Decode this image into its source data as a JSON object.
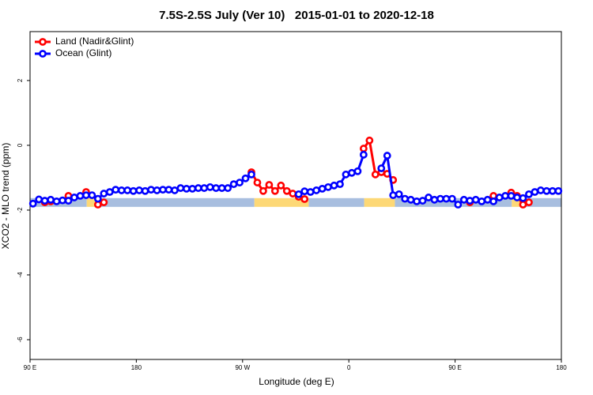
{
  "chart_data": {
    "type": "line",
    "title": "7.5S-2.5S July (Ver 10)   2015-01-01 to 2020-12-18",
    "x_label": "Longitude (deg E)",
    "y_label": "XCO2 - MLO trend (ppm)",
    "xlim": [
      90,
      540
    ],
    "ylim": [
      -6.61,
      3.51
    ],
    "xticks": [
      {
        "value": 90,
        "label": "90 E"
      },
      180,
      {
        "value": 270,
        "label": "90 W"
      },
      {
        "value": 360,
        "label": "0"
      },
      {
        "value": 450,
        "label": "90 E"
      },
      {
        "value": 540,
        "label": "180"
      }
    ],
    "yticks": [
      -6,
      -4,
      -2,
      0,
      2
    ],
    "legend": "upper left",
    "bands": [
      {
        "xlim": [
          90,
          138
        ],
        "ylim": [
          -1.63,
          -1.9
        ],
        "color": "#a8bedf"
      },
      {
        "xlim": [
          138,
          148
        ],
        "ylim": [
          -1.63,
          -1.9
        ],
        "color": "#fdd876"
      },
      {
        "xlim": [
          148,
          280
        ],
        "ylim": [
          -1.63,
          -1.9
        ],
        "color": "#a8bedf"
      },
      {
        "xlim": [
          280,
          326
        ],
        "ylim": [
          -1.63,
          -1.9
        ],
        "color": "#fdd876"
      },
      {
        "xlim": [
          326,
          373
        ],
        "ylim": [
          -1.63,
          -1.9
        ],
        "color": "#a8bedf"
      },
      {
        "xlim": [
          373,
          399
        ],
        "ylim": [
          -1.63,
          -1.9
        ],
        "color": "#fdd876"
      },
      {
        "xlim": [
          399,
          498
        ],
        "ylim": [
          -1.63,
          -1.9
        ],
        "color": "#a8bedf"
      },
      {
        "xlim": [
          498,
          506
        ],
        "ylim": [
          -1.63,
          -1.9
        ],
        "color": "#fdd876"
      },
      {
        "xlim": [
          506,
          540
        ],
        "ylim": [
          -1.63,
          -1.9
        ],
        "color": "#a8bedf"
      }
    ],
    "x": [
      92.5,
      97.5,
      102.5,
      107.5,
      112.5,
      117.5,
      122.5,
      127.5,
      132.5,
      137.5,
      142.5,
      147.5,
      152.5,
      157.5,
      162.5,
      167.5,
      172.5,
      177.5,
      182.5,
      187.5,
      192.5,
      197.5,
      202.5,
      207.5,
      212.5,
      217.5,
      222.5,
      227.5,
      232.5,
      237.5,
      242.5,
      247.5,
      252.5,
      257.5,
      262.5,
      267.5,
      272.5,
      277.5,
      282.5,
      287.5,
      292.5,
      297.5,
      302.5,
      307.5,
      312.5,
      317.5,
      322.5,
      327.5,
      332.5,
      337.5,
      342.5,
      347.5,
      352.5,
      357.5,
      362.5,
      367.5,
      372.5,
      377.5,
      382.5,
      387.5,
      392.5,
      397.5,
      402.5,
      407.5,
      412.5,
      417.5,
      422.5,
      427.5,
      432.5,
      437.5,
      442.5,
      447.5,
      452.5,
      457.5,
      462.5,
      467.5,
      472.5,
      477.5,
      482.5,
      487.5,
      492.5,
      497.5,
      502.5,
      507.5,
      512.5,
      517.5,
      522.5,
      527.5,
      532.5,
      537.5
    ],
    "series": [
      {
        "name": "Land (Nadir&Glint)",
        "color": "#ff0000",
        "values": [
          null,
          null,
          -1.76,
          -1.73,
          null,
          null,
          -1.56,
          null,
          null,
          -1.44,
          null,
          -1.83,
          -1.76,
          null,
          null,
          null,
          null,
          null,
          null,
          null,
          null,
          null,
          null,
          null,
          null,
          null,
          null,
          null,
          null,
          null,
          null,
          null,
          null,
          null,
          null,
          null,
          null,
          -0.83,
          -1.15,
          -1.41,
          -1.22,
          -1.41,
          -1.24,
          -1.41,
          -1.49,
          -1.59,
          -1.66,
          null,
          null,
          null,
          null,
          null,
          null,
          null,
          null,
          null,
          -0.1,
          0.15,
          -0.9,
          -0.83,
          -0.88,
          -1.07,
          null,
          null,
          null,
          null,
          null,
          null,
          null,
          null,
          null,
          null,
          null,
          null,
          -1.76,
          null,
          null,
          null,
          -1.56,
          null,
          null,
          -1.46,
          -1.56,
          -1.83,
          -1.76,
          null,
          null,
          null,
          null,
          null
        ]
      },
      {
        "name": "Ocean (Glint)",
        "color": "#0000ff",
        "values": [
          -1.8,
          -1.67,
          -1.71,
          -1.68,
          -1.73,
          -1.7,
          -1.71,
          -1.61,
          -1.56,
          -1.54,
          -1.54,
          -1.65,
          -1.49,
          -1.44,
          -1.37,
          -1.39,
          -1.39,
          -1.41,
          -1.39,
          -1.41,
          -1.37,
          -1.39,
          -1.37,
          -1.37,
          -1.39,
          -1.32,
          -1.34,
          -1.34,
          -1.32,
          -1.32,
          -1.29,
          -1.32,
          -1.32,
          -1.32,
          -1.2,
          -1.15,
          -1.02,
          -0.9,
          null,
          null,
          null,
          null,
          null,
          null,
          null,
          -1.51,
          -1.42,
          -1.44,
          -1.39,
          -1.34,
          -1.29,
          -1.24,
          -1.2,
          -0.9,
          -0.85,
          -0.8,
          -0.29,
          null,
          null,
          -0.71,
          -0.32,
          -1.54,
          -1.51,
          -1.65,
          -1.68,
          -1.73,
          -1.71,
          -1.61,
          -1.68,
          -1.65,
          -1.65,
          -1.65,
          -1.83,
          -1.68,
          -1.71,
          -1.68,
          -1.73,
          -1.68,
          -1.73,
          -1.61,
          -1.56,
          -1.56,
          -1.61,
          -1.63,
          -1.51,
          -1.44,
          -1.39,
          -1.41,
          -1.41,
          -1.41
        ]
      }
    ]
  }
}
